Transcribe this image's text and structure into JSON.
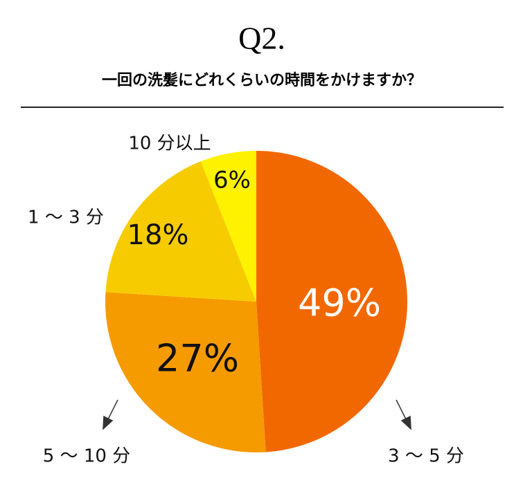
{
  "chart_data": {
    "type": "pie",
    "title": "Q2.",
    "subtitle": "一回の洗髪にどれくらいの時間をかけますか？",
    "categories": [
      "3 ～ 5 分",
      "5 ～ 10 分",
      "1 ～ 3 分",
      "10 分以上"
    ],
    "values": [
      49,
      27,
      18,
      6
    ],
    "value_labels": [
      "49%",
      "27%",
      "18%",
      "6%"
    ],
    "colors": [
      "#f26800",
      "#f59b00",
      "#f6cc00",
      "#fff200"
    ]
  }
}
